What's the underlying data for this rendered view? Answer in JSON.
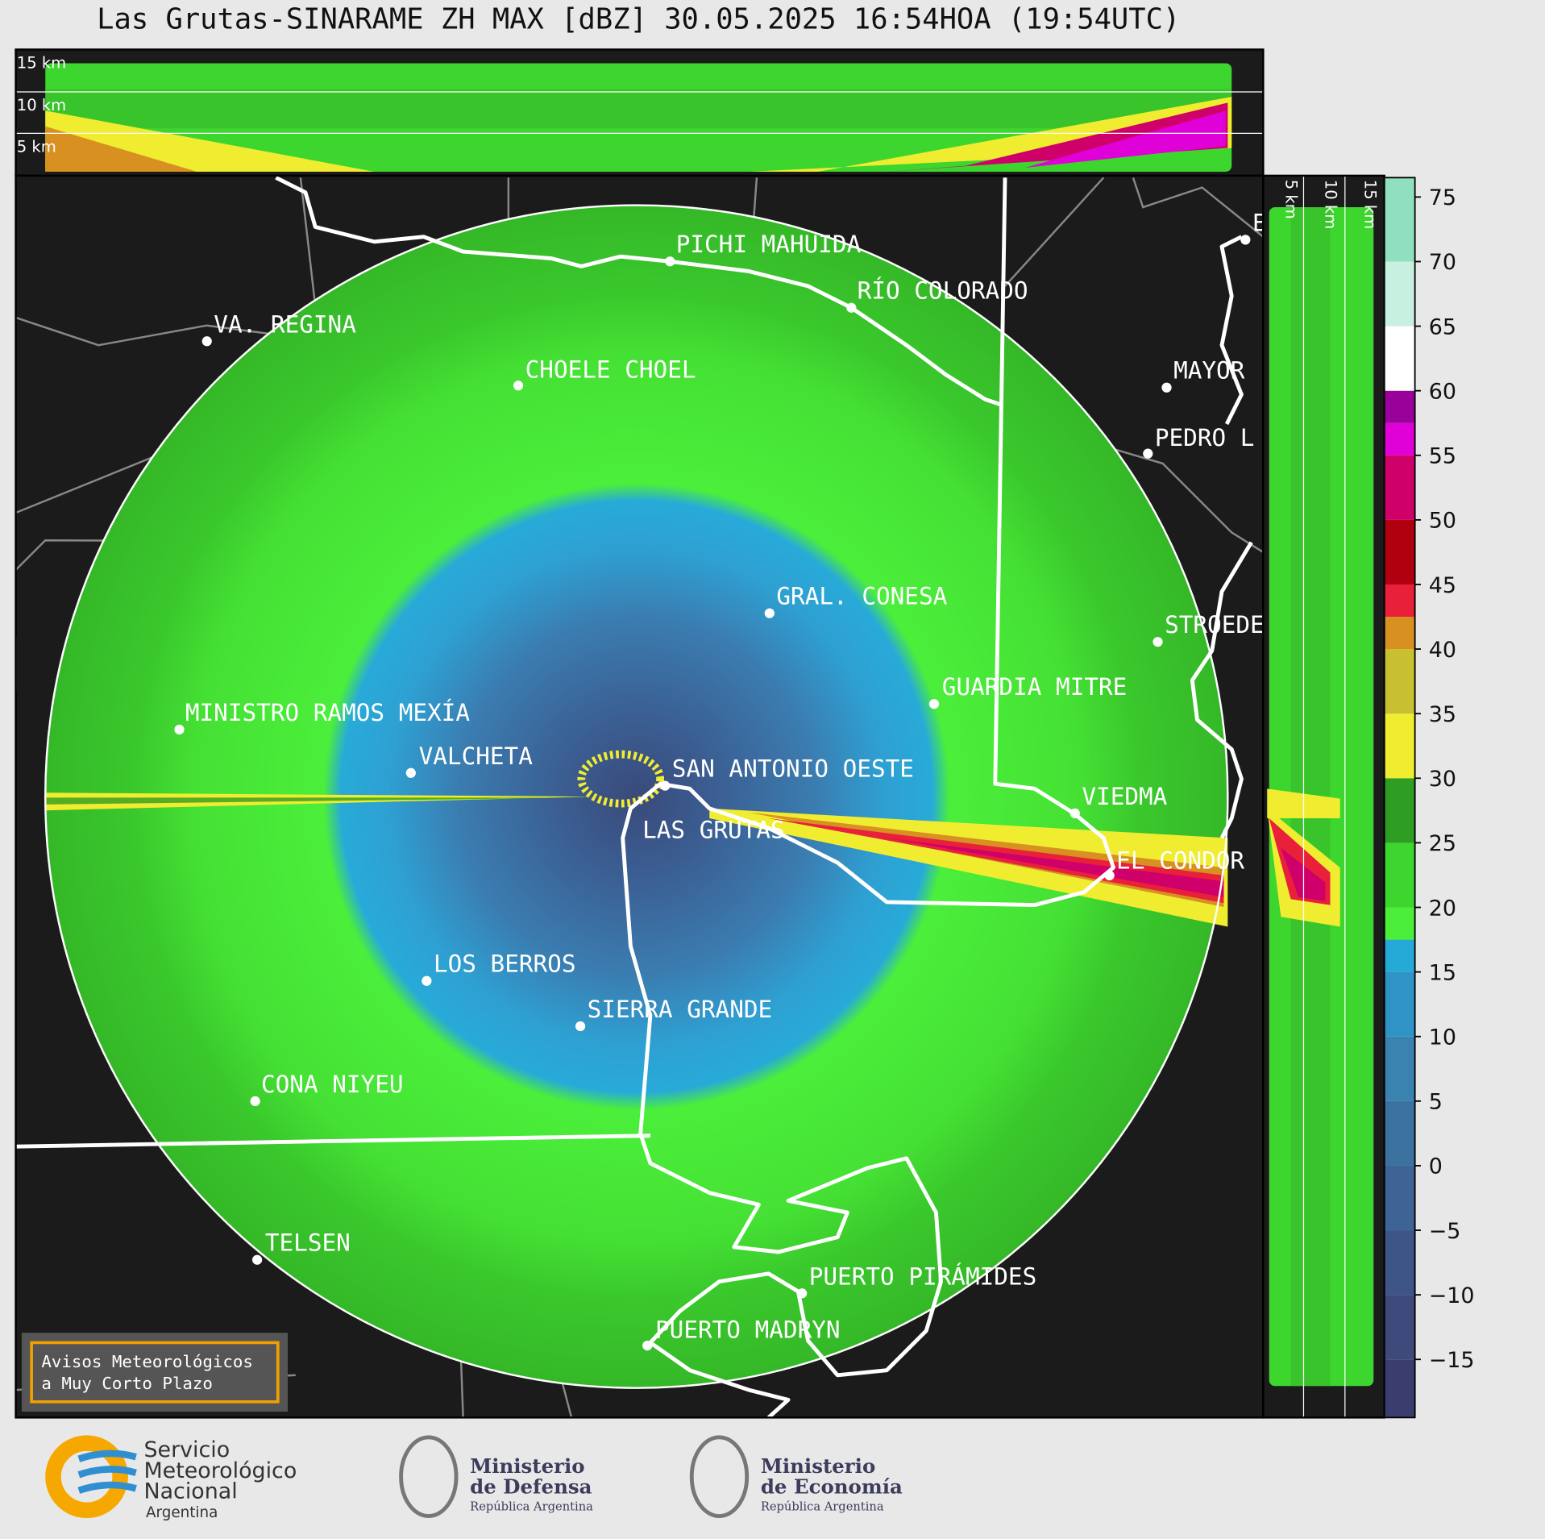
{
  "title": "Las Grutas-SINARAME ZH MAX [dBZ] 30.05.2025 16:54HOA (19:54UTC)",
  "top_panel": {
    "height_labels": [
      "15 km",
      "10 km",
      "5 km"
    ]
  },
  "side_panel": {
    "height_labels": [
      "5 km",
      "10 km",
      "15 km"
    ]
  },
  "map": {
    "places": [
      {
        "label": "PICHI MAHUIDA"
      },
      {
        "label": "RÍO COLORADO"
      },
      {
        "label": "VA. REGINA"
      },
      {
        "label": "CHOELE CHOEL"
      },
      {
        "label": "MAYOR"
      },
      {
        "label": "PEDRO L"
      },
      {
        "label": "E"
      },
      {
        "label": "GRAL. CONESA"
      },
      {
        "label": "STROEDE"
      },
      {
        "label": "GUARDIA MITRE"
      },
      {
        "label": "MINISTRO RAMOS MEXÍA"
      },
      {
        "label": "VALCHETA"
      },
      {
        "label": "SAN ANTONIO OESTE"
      },
      {
        "label": "LAS GRUTAS"
      },
      {
        "label": "VIEDMA"
      },
      {
        "label": "EL CONDOR"
      },
      {
        "label": "LOS BERROS"
      },
      {
        "label": "SIERRA GRANDE"
      },
      {
        "label": "CONA NIYEU"
      },
      {
        "label": "TELSEN"
      },
      {
        "label": "PUERTO PIRÁMIDES"
      },
      {
        "label": "PUERTO MADRYN"
      }
    ]
  },
  "colorbar": {
    "bounds": [
      -19.5,
      -15,
      -10,
      -5,
      0,
      5,
      10,
      15,
      17.5,
      20,
      25,
      30,
      35,
      40,
      42.5,
      45,
      50,
      55,
      57.5,
      60,
      65,
      70,
      76.5
    ],
    "colors": [
      "#3a3d6e",
      "#3e4a7c",
      "#3e5588",
      "#3d6494",
      "#3c72a0",
      "#3a82b0",
      "#2f93c6",
      "#25a9d6",
      "#4bef3a",
      "#3dd62e",
      "#2e9e22",
      "#f0ec30",
      "#c8c030",
      "#d89020",
      "#e8203a",
      "#b00010",
      "#d0006a",
      "#e000d8",
      "#9a009a",
      "#ffffff",
      "#c8f0e0",
      "#90e0c0"
    ],
    "ticks": [
      {
        "value": -15,
        "label": "−15"
      },
      {
        "value": -10,
        "label": "−10"
      },
      {
        "value": -5,
        "label": "−5"
      },
      0,
      5,
      10,
      15,
      20,
      25,
      30,
      35,
      40,
      45,
      50,
      55,
      60,
      65,
      70,
      75
    ]
  },
  "notice": {
    "lines": [
      "Avisos Meteorológicos",
      "a Muy Corto Plazo"
    ]
  },
  "footer": {
    "logos": [
      {
        "lines": [
          "Servicio",
          "Meteorológico",
          "Nacional",
          "Argentina"
        ]
      },
      {
        "lines": [
          "Ministerio",
          "de Defensa",
          "República Argentina"
        ]
      },
      {
        "lines": [
          "Ministerio",
          "de Economía",
          "República Argentina"
        ]
      }
    ]
  }
}
